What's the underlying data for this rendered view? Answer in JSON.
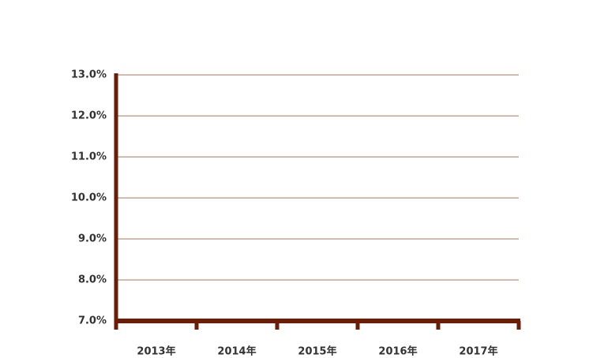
{
  "chart_data": {
    "type": "line",
    "categories": [
      "2013年",
      "2014年",
      "2015年",
      "2016年",
      "2017年"
    ],
    "ylim": [
      7,
      13
    ],
    "yticks": [
      {
        "value": 7,
        "label": "7.0%"
      },
      {
        "value": 8,
        "label": "8.0%"
      },
      {
        "value": 9,
        "label": "9.0%"
      },
      {
        "value": 10,
        "label": "10.0%"
      },
      {
        "value": 11,
        "label": "11.0%"
      },
      {
        "value": 12,
        "label": "12.0%"
      },
      {
        "value": 13,
        "label": "13.0%"
      }
    ],
    "grid": true,
    "grid_color": "#c4a596",
    "axis_color": "#6b1d07"
  }
}
